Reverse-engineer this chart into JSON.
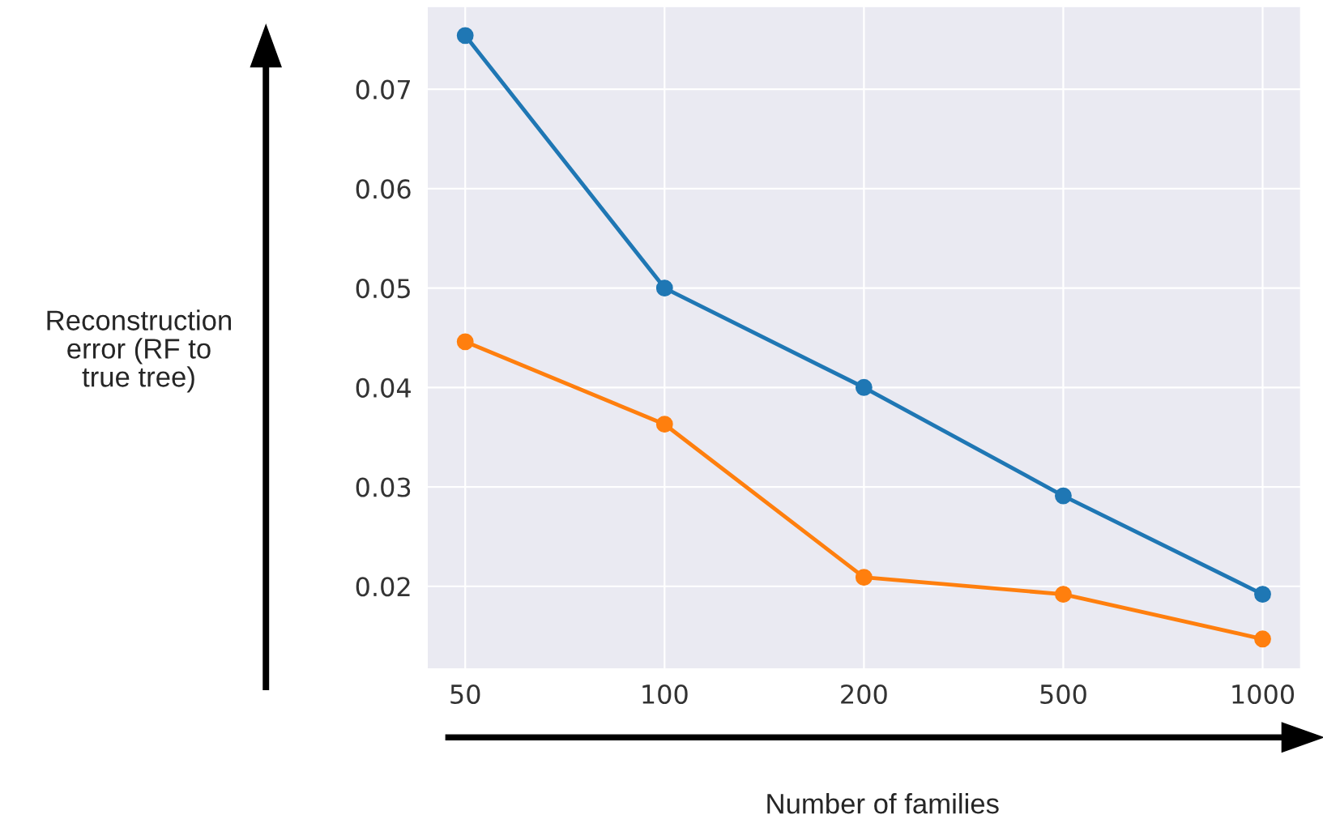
{
  "chart_data": {
    "type": "line",
    "categories": [
      "50",
      "100",
      "200",
      "500",
      "1000"
    ],
    "series": [
      {
        "color": "#1f77b4",
        "values": [
          0.0754,
          0.05,
          0.04,
          0.0291,
          0.0192
        ]
      },
      {
        "color": "#ff7f0e",
        "values": [
          0.0446,
          0.0363,
          0.0209,
          0.0192,
          0.0147
        ]
      }
    ],
    "xlabel": "Number of families",
    "ylabel": "Reconstruction\nerror (RF to\ntrue tree)",
    "ylim": [
      0.0117,
      0.0783
    ],
    "yticks": [
      0.02,
      0.03,
      0.04,
      0.05,
      0.06,
      0.07
    ],
    "grid": true,
    "marker": "circle",
    "line_style": "solid"
  }
}
